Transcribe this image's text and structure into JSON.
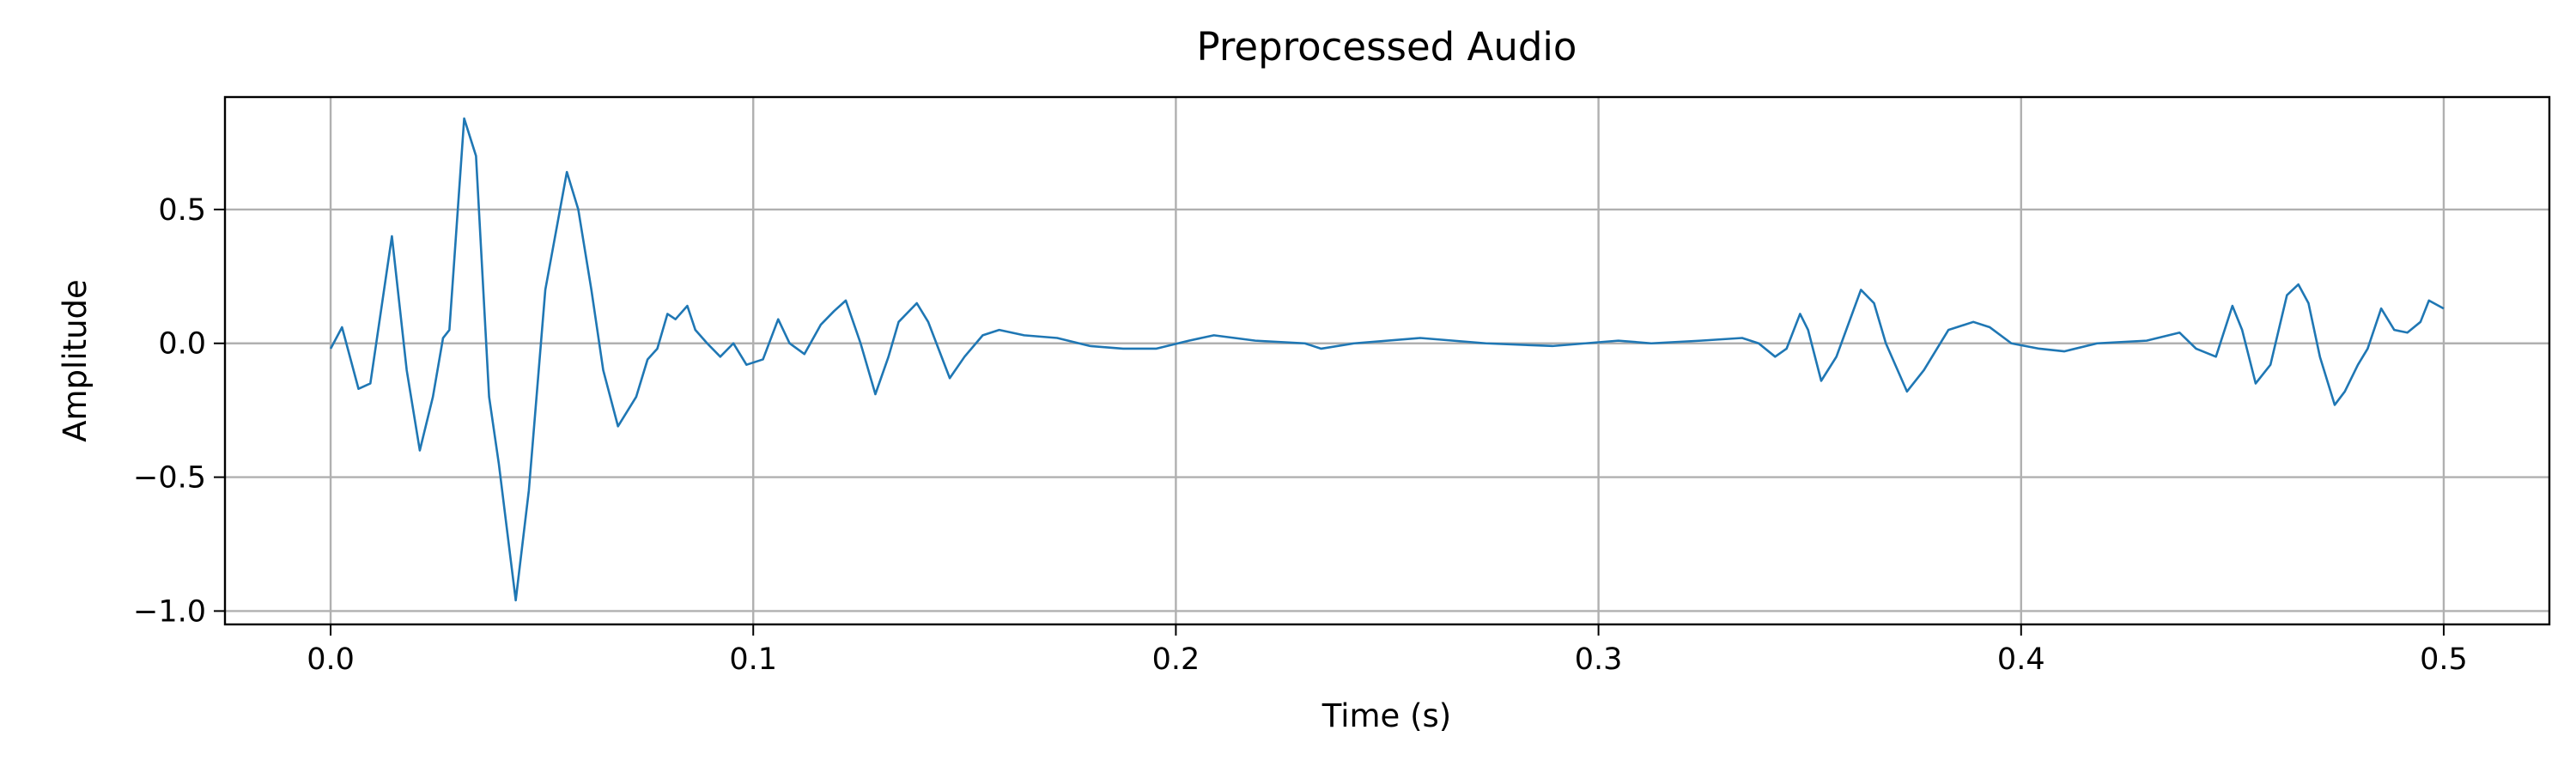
{
  "chart_data": {
    "type": "line",
    "title": "Preprocessed Audio",
    "x_label": "Time (s)",
    "y_label": "Amplitude",
    "xlim": [
      -0.025,
      0.525
    ],
    "ylim": [
      -1.05,
      0.92
    ],
    "xticks": [
      {
        "value": 0,
        "label": "0.0"
      },
      0.1,
      0.2,
      0.3,
      0.4,
      0.5
    ],
    "yticks": [
      {
        "value": -1,
        "label": "−1.0"
      },
      {
        "value": -0.5,
        "label": "−0.5"
      },
      {
        "value": 0,
        "label": "0.0"
      },
      0.5
    ],
    "grid": true,
    "x": [
      0,
      0.0027,
      0.0066,
      0.0094,
      0.0145,
      0.018,
      0.0211,
      0.0242,
      0.0266,
      0.0281,
      0.0316,
      0.0344,
      0.0375,
      0.0398,
      0.0438,
      0.0469,
      0.0508,
      0.0559,
      0.0586,
      0.0617,
      0.0645,
      0.068,
      0.0723,
      0.075,
      0.0773,
      0.0797,
      0.0816,
      0.0844,
      0.0863,
      0.0891,
      0.0922,
      0.0953,
      0.0984,
      0.1023,
      0.1059,
      0.1086,
      0.1121,
      0.116,
      0.1191,
      0.1219,
      0.1254,
      0.1289,
      0.132,
      0.1344,
      0.1387,
      0.1414,
      0.1465,
      0.15,
      0.1543,
      0.1582,
      0.1641,
      0.1719,
      0.1797,
      0.1875,
      0.1953,
      0.2031,
      0.209,
      0.2188,
      0.2305,
      0.2344,
      0.2422,
      0.2578,
      0.2734,
      0.2891,
      0.3047,
      0.3125,
      0.3242,
      0.334,
      0.3379,
      0.3418,
      0.3445,
      0.3477,
      0.3496,
      0.3527,
      0.3563,
      0.3621,
      0.3652,
      0.368,
      0.373,
      0.377,
      0.3828,
      0.3887,
      0.3926,
      0.3977,
      0.4043,
      0.4102,
      0.418,
      0.4297,
      0.4375,
      0.4414,
      0.4461,
      0.45,
      0.4523,
      0.4555,
      0.459,
      0.4629,
      0.4656,
      0.468,
      0.4707,
      0.4742,
      0.4766,
      0.4797,
      0.482,
      0.4852,
      0.4883,
      0.4914,
      0.4945,
      0.4965,
      0.5
    ],
    "series": [
      {
        "color": "#1f77b4",
        "values": [
          -0.02,
          0.06,
          -0.17,
          -0.15,
          0.4,
          -0.1,
          -0.4,
          -0.2,
          0.02,
          0.05,
          0.84,
          0.7,
          -0.2,
          -0.45,
          -0.96,
          -0.55,
          0.2,
          0.64,
          0.5,
          0.2,
          -0.1,
          -0.31,
          -0.2,
          -0.06,
          -0.02,
          0.11,
          0.09,
          0.14,
          0.05,
          0,
          -0.05,
          0,
          -0.08,
          -0.06,
          0.09,
          0,
          -0.04,
          0.07,
          0.12,
          0.16,
          0,
          -0.19,
          -0.05,
          0.08,
          0.15,
          0.08,
          -0.13,
          -0.05,
          0.03,
          0.05,
          0.03,
          0.02,
          -0.01,
          -0.02,
          -0.02,
          0.01,
          0.03,
          0.01,
          0,
          -0.02,
          0,
          0.02,
          0,
          -0.01,
          0.01,
          0,
          0.01,
          0.02,
          0,
          -0.05,
          -0.02,
          0.11,
          0.05,
          -0.14,
          -0.05,
          0.2,
          0.15,
          0,
          -0.18,
          -0.1,
          0.05,
          0.08,
          0.06,
          0,
          -0.02,
          -0.03,
          0,
          0.01,
          0.04,
          -0.02,
          -0.05,
          0.14,
          0.05,
          -0.15,
          -0.08,
          0.18,
          0.22,
          0.15,
          -0.05,
          -0.23,
          -0.18,
          -0.08,
          -0.02,
          0.13,
          0.05,
          0.04,
          0.08,
          0.16,
          0.13
        ]
      }
    ]
  }
}
